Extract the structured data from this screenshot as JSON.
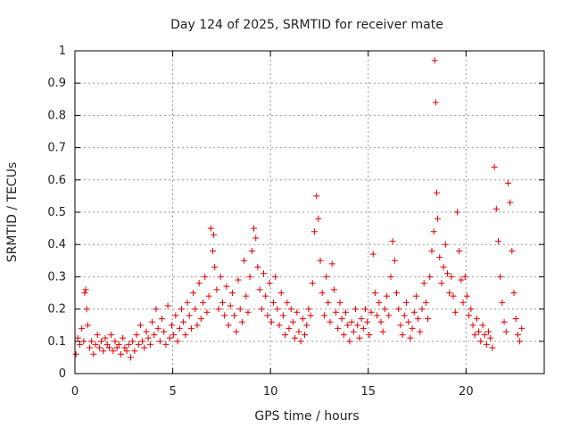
{
  "chart_data": {
    "type": "scatter",
    "title": "Day 124 of 2025, SRMTID for receiver mate",
    "xlabel": "GPS time / hours",
    "ylabel": "SRMTID / TECUs",
    "xlim": [
      0,
      24
    ],
    "ylim": [
      0,
      1
    ],
    "xticks": [
      0,
      5,
      10,
      15,
      20
    ],
    "xtick_labels": [
      "0",
      "5",
      "10",
      "15",
      "20"
    ],
    "yticks": [
      0,
      0.1,
      0.2,
      0.3,
      0.4,
      0.5,
      0.6,
      0.7,
      0.8,
      0.9,
      1
    ],
    "ytick_labels": [
      "0",
      "0.1",
      "0.2",
      "0.3",
      "0.4",
      "0.5",
      "0.6",
      "0.7",
      "0.8",
      "0.9",
      "1"
    ],
    "grid": true,
    "marker": "+",
    "colors": {
      "marker": "#e00000",
      "grid": "#999999",
      "axis": "#000000"
    },
    "series": [
      {
        "name": "SRMTID",
        "x": [
          0.05,
          0.15,
          0.25,
          0.35,
          0.45,
          0.5,
          0.55,
          0.6,
          0.65,
          0.75,
          0.85,
          0.95,
          1.05,
          1.15,
          1.25,
          1.35,
          1.45,
          1.55,
          1.65,
          1.75,
          1.85,
          1.95,
          2.05,
          2.15,
          2.25,
          2.35,
          2.45,
          2.55,
          2.65,
          2.75,
          2.85,
          2.95,
          3.05,
          3.15,
          3.25,
          3.35,
          3.45,
          3.55,
          3.65,
          3.75,
          3.85,
          3.95,
          4.05,
          4.15,
          4.25,
          4.35,
          4.45,
          4.55,
          4.65,
          4.75,
          4.85,
          4.95,
          5.05,
          5.15,
          5.25,
          5.35,
          5.45,
          5.55,
          5.65,
          5.75,
          5.85,
          5.95,
          6.05,
          6.15,
          6.25,
          6.35,
          6.45,
          6.55,
          6.65,
          6.75,
          6.85,
          6.95,
          7.05,
          7.1,
          7.15,
          7.25,
          7.35,
          7.45,
          7.55,
          7.65,
          7.75,
          7.85,
          7.95,
          8.05,
          8.15,
          8.25,
          8.35,
          8.45,
          8.55,
          8.65,
          8.75,
          8.85,
          8.95,
          9.05,
          9.15,
          9.25,
          9.35,
          9.45,
          9.55,
          9.65,
          9.75,
          9.85,
          9.95,
          10.05,
          10.15,
          10.25,
          10.35,
          10.45,
          10.55,
          10.65,
          10.75,
          10.85,
          10.95,
          11.05,
          11.15,
          11.25,
          11.35,
          11.45,
          11.55,
          11.65,
          11.75,
          11.85,
          11.95,
          12.05,
          12.15,
          12.25,
          12.35,
          12.45,
          12.55,
          12.65,
          12.75,
          12.85,
          12.95,
          13.05,
          13.15,
          13.25,
          13.35,
          13.45,
          13.55,
          13.65,
          13.75,
          13.85,
          13.95,
          14.05,
          14.15,
          14.25,
          14.35,
          14.45,
          14.55,
          14.65,
          14.75,
          14.85,
          14.95,
          15.05,
          15.15,
          15.25,
          15.35,
          15.45,
          15.55,
          15.65,
          15.75,
          15.85,
          15.95,
          16.05,
          16.15,
          16.25,
          16.35,
          16.45,
          16.55,
          16.65,
          16.75,
          16.85,
          16.95,
          17.05,
          17.15,
          17.25,
          17.35,
          17.45,
          17.55,
          17.65,
          17.75,
          17.85,
          17.95,
          18.05,
          18.15,
          18.25,
          18.35,
          18.4,
          18.45,
          18.5,
          18.55,
          18.65,
          18.75,
          18.85,
          18.95,
          19.05,
          19.15,
          19.25,
          19.35,
          19.45,
          19.55,
          19.65,
          19.75,
          19.85,
          19.95,
          20.05,
          20.15,
          20.25,
          20.35,
          20.45,
          20.55,
          20.65,
          20.75,
          20.85,
          20.95,
          21.05,
          21.15,
          21.25,
          21.35,
          21.45,
          21.55,
          21.65,
          21.75,
          21.85,
          21.95,
          22.05,
          22.15,
          22.25,
          22.35,
          22.45,
          22.55,
          22.65,
          22.75,
          22.85
        ],
        "y": [
          0.06,
          0.11,
          0.09,
          0.14,
          0.1,
          0.25,
          0.26,
          0.2,
          0.15,
          0.08,
          0.1,
          0.06,
          0.09,
          0.12,
          0.08,
          0.1,
          0.07,
          0.11,
          0.09,
          0.08,
          0.12,
          0.07,
          0.1,
          0.08,
          0.09,
          0.06,
          0.11,
          0.08,
          0.07,
          0.09,
          0.05,
          0.1,
          0.07,
          0.12,
          0.09,
          0.15,
          0.1,
          0.08,
          0.13,
          0.11,
          0.09,
          0.16,
          0.12,
          0.2,
          0.14,
          0.1,
          0.17,
          0.13,
          0.09,
          0.21,
          0.11,
          0.15,
          0.12,
          0.18,
          0.1,
          0.14,
          0.2,
          0.16,
          0.12,
          0.22,
          0.18,
          0.14,
          0.25,
          0.2,
          0.15,
          0.28,
          0.17,
          0.22,
          0.3,
          0.19,
          0.24,
          0.45,
          0.38,
          0.43,
          0.33,
          0.26,
          0.2,
          0.3,
          0.22,
          0.18,
          0.27,
          0.15,
          0.21,
          0.25,
          0.18,
          0.13,
          0.29,
          0.2,
          0.16,
          0.35,
          0.24,
          0.19,
          0.3,
          0.38,
          0.45,
          0.42,
          0.33,
          0.26,
          0.2,
          0.31,
          0.24,
          0.18,
          0.28,
          0.16,
          0.22,
          0.3,
          0.2,
          0.15,
          0.25,
          0.18,
          0.12,
          0.22,
          0.14,
          0.2,
          0.16,
          0.11,
          0.19,
          0.13,
          0.1,
          0.17,
          0.12,
          0.15,
          0.2,
          0.18,
          0.28,
          0.44,
          0.55,
          0.48,
          0.35,
          0.25,
          0.18,
          0.3,
          0.22,
          0.16,
          0.34,
          0.26,
          0.19,
          0.14,
          0.22,
          0.17,
          0.12,
          0.19,
          0.15,
          0.1,
          0.16,
          0.13,
          0.2,
          0.15,
          0.11,
          0.17,
          0.14,
          0.2,
          0.16,
          0.12,
          0.19,
          0.37,
          0.25,
          0.18,
          0.22,
          0.16,
          0.13,
          0.2,
          0.24,
          0.18,
          0.3,
          0.41,
          0.35,
          0.25,
          0.2,
          0.15,
          0.12,
          0.18,
          0.22,
          0.16,
          0.11,
          0.14,
          0.19,
          0.24,
          0.17,
          0.13,
          0.2,
          0.28,
          0.22,
          0.17,
          0.3,
          0.38,
          0.44,
          0.97,
          0.84,
          0.56,
          0.48,
          0.36,
          0.28,
          0.33,
          0.4,
          0.31,
          0.25,
          0.3,
          0.24,
          0.19,
          0.5,
          0.38,
          0.29,
          0.22,
          0.3,
          0.24,
          0.18,
          0.2,
          0.15,
          0.12,
          0.17,
          0.13,
          0.1,
          0.15,
          0.12,
          0.09,
          0.13,
          0.11,
          0.08,
          0.64,
          0.51,
          0.41,
          0.3,
          0.22,
          0.16,
          0.13,
          0.59,
          0.53,
          0.38,
          0.25,
          0.17,
          0.12,
          0.1,
          0.14
        ]
      }
    ]
  }
}
